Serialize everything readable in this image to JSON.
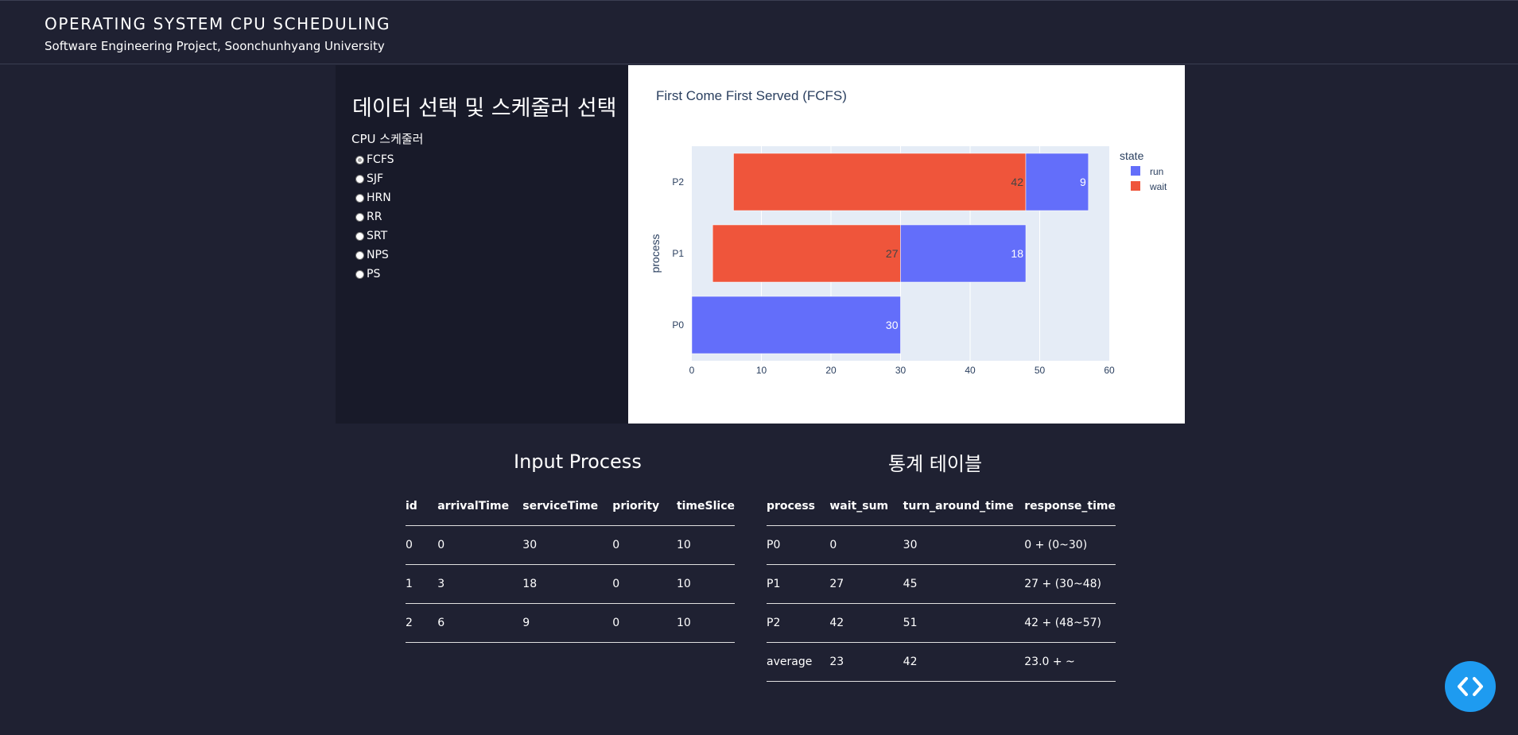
{
  "header": {
    "title": "OPERATING SYSTEM CPU SCHEDULING",
    "subtitle": "Software Engineering Project, Soonchunhyang University"
  },
  "left_panel": {
    "title": "데이터 선택 및 스케줄러 선택",
    "group_label": "CPU 스케줄러",
    "options": [
      "FCFS",
      "SJF",
      "HRN",
      "RR",
      "SRT",
      "NPS",
      "PS"
    ],
    "selected": "FCFS"
  },
  "chart_data": {
    "type": "bar",
    "orientation": "horizontal",
    "barmode": "stack",
    "title": "First Come First Served (FCFS)",
    "ylabel": "process",
    "xlabel": "",
    "categories": [
      "P0",
      "P1",
      "P2"
    ],
    "xlim": [
      0,
      60
    ],
    "xticks": [
      0,
      10,
      20,
      30,
      40,
      50,
      60
    ],
    "grid": true,
    "legend": {
      "title": "state",
      "placement": "right"
    },
    "bars": [
      {
        "process": "P0",
        "state": "run",
        "start": 0,
        "end": 30,
        "label": "30"
      },
      {
        "process": "P1",
        "state": "wait",
        "start": 3,
        "end": 30,
        "label": "27"
      },
      {
        "process": "P1",
        "state": "run",
        "start": 30,
        "end": 48,
        "label": "18"
      },
      {
        "process": "P2",
        "state": "wait",
        "start": 6,
        "end": 48,
        "label": "42"
      },
      {
        "process": "P2",
        "state": "run",
        "start": 48,
        "end": 57,
        "label": "9"
      }
    ],
    "series": [
      {
        "name": "run",
        "color": "#636efa"
      },
      {
        "name": "wait",
        "color": "#ef553b"
      }
    ]
  },
  "input_table": {
    "title": "Input Process",
    "columns": [
      "id",
      "arrivalTime",
      "serviceTime",
      "priority",
      "timeSlice"
    ],
    "rows": [
      [
        "0",
        "0",
        "30",
        "0",
        "10"
      ],
      [
        "1",
        "3",
        "18",
        "0",
        "10"
      ],
      [
        "2",
        "6",
        "9",
        "0",
        "10"
      ]
    ]
  },
  "stats_table": {
    "title": "통계 테이블",
    "columns": [
      "process",
      "wait_sum",
      "turn_around_time",
      "response_time"
    ],
    "rows": [
      [
        "P0",
        "0",
        "30",
        "0 + (0~30)"
      ],
      [
        "P1",
        "27",
        "45",
        "27 + (30~48)"
      ],
      [
        "P2",
        "42",
        "51",
        "42 + (48~57)"
      ],
      [
        "average",
        "23",
        "42",
        "23.0 + ~"
      ]
    ]
  },
  "fab": {
    "icon": "code-icon"
  },
  "colors": {
    "background": "#1f2132",
    "panel": "#181a29",
    "accent": "#1e9bf0",
    "run": "#636efa",
    "wait": "#ef553b",
    "plot_bg": "#e5ecf6"
  }
}
